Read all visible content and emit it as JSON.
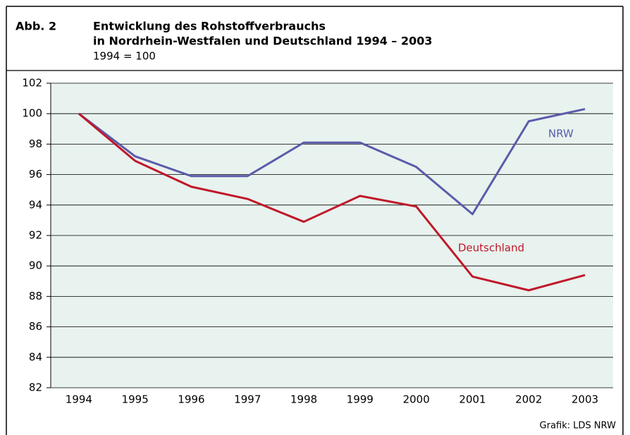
{
  "chart_data": {
    "type": "line",
    "figure_label": "Abb. 2",
    "title": [
      "Entwicklung des Rohstoffverbrauchs",
      "in Nordrhein-Westfalen und Deutschland 1994 – 2003"
    ],
    "subtitle": "1994 = 100",
    "source": "Grafik: LDS NRW",
    "categories": [
      "1994",
      "1995",
      "1996",
      "1997",
      "1998",
      "1999",
      "2000",
      "2001",
      "2002",
      "2003"
    ],
    "series": [
      {
        "name": "NRW",
        "color": "#5b5bab",
        "values": [
          100,
          97.2,
          95.9,
          95.9,
          98.1,
          98.1,
          96.5,
          93.4,
          99.5,
          100.3
        ]
      },
      {
        "name": "Deutschland",
        "color": "#c0182a",
        "values": [
          100,
          96.9,
          95.2,
          94.4,
          92.9,
          94.6,
          93.9,
          89.3,
          88.4,
          89.4
        ]
      }
    ],
    "ylim": [
      82,
      102
    ],
    "yticks": [
      82,
      84,
      86,
      88,
      90,
      92,
      94,
      96,
      98,
      100,
      102
    ],
    "grid": true,
    "background": "#e8f2ee"
  }
}
